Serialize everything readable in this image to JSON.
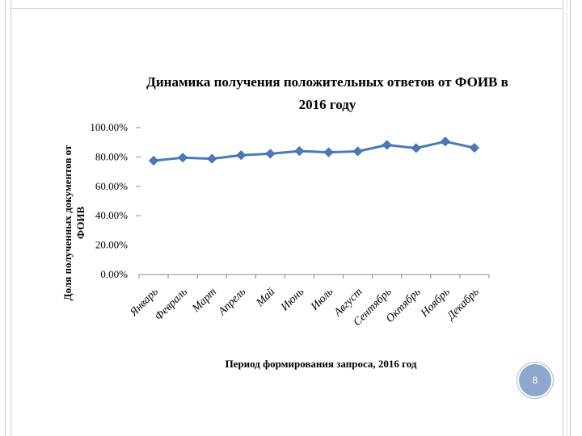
{
  "chart_data": {
    "type": "line",
    "title_lines": [
      "Динамика получения положительных ответов от ФОИВ в",
      "2016 году"
    ],
    "xlabel": "Период формирования запроса, 2016 год",
    "ylabel_lines": [
      "Доля полученных документов от",
      "ФОИВ"
    ],
    "categories": [
      "Январь",
      "Февраль",
      "Март",
      "Апрель",
      "Май",
      "Июнь",
      "Июль",
      "Август",
      "Сентябрь",
      "Октябрь",
      "Ноябрь",
      "Декабрь"
    ],
    "y_ticks": [
      "100.00%",
      "80.00%",
      "60.00%",
      "40.00%",
      "20.00%",
      "0.00%"
    ],
    "ylim": [
      0,
      100
    ],
    "series": [
      {
        "values": [
          77.5,
          79.5,
          78.8,
          81.2,
          82.2,
          84.0,
          83.2,
          83.8,
          88.2,
          86.0,
          90.5,
          86.2
        ]
      }
    ],
    "grid": false,
    "line_color": "#4a7ab8"
  },
  "slide": {
    "page_number": "8",
    "accent_color": "#8da8cc"
  }
}
